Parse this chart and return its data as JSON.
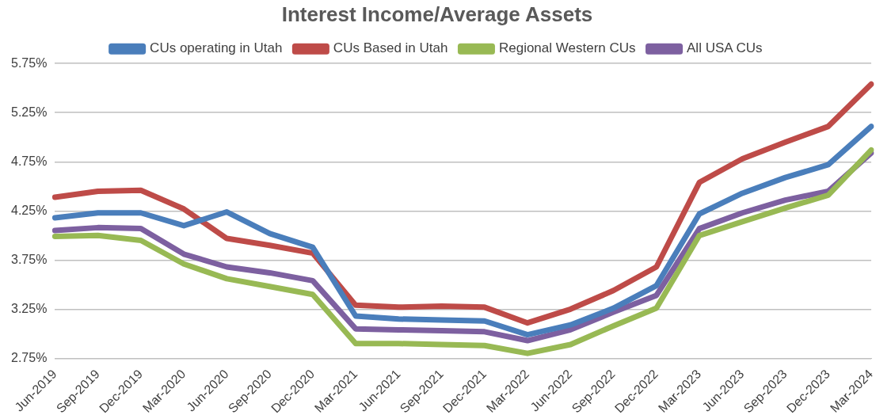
{
  "chart_data": {
    "type": "line",
    "title": "Interest Income/Average Assets",
    "categories": [
      "Jun-2019",
      "Sep-2019",
      "Dec-2019",
      "Mar-2020",
      "Jun-2020",
      "Sep-2020",
      "Dec-2020",
      "Mar-2021",
      "Jun-2021",
      "Sep-2021",
      "Dec-2021",
      "Mar-2022",
      "Jun-2022",
      "Sep-2022",
      "Dec-2022",
      "Mar-2023",
      "Jun-2023",
      "Sep-2023",
      "Dec-2023",
      "Mar-2024"
    ],
    "series": [
      {
        "name": "CUs operating in Utah",
        "color": "#4a7ebb",
        "values": [
          4.18,
          4.23,
          4.23,
          4.1,
          4.24,
          4.02,
          3.88,
          3.18,
          3.15,
          3.14,
          3.13,
          2.99,
          3.09,
          3.26,
          3.49,
          4.22,
          4.43,
          4.59,
          4.72,
          5.11
        ]
      },
      {
        "name": "CUs Based in Utah",
        "color": "#be4b48",
        "values": [
          4.39,
          4.45,
          4.46,
          4.27,
          3.97,
          3.9,
          3.82,
          3.29,
          3.27,
          3.28,
          3.27,
          3.11,
          3.25,
          3.44,
          3.68,
          4.54,
          4.78,
          4.95,
          5.11,
          5.54
        ]
      },
      {
        "name": "Regional Western CUs",
        "color": "#98b954",
        "values": [
          3.99,
          4.0,
          3.95,
          3.71,
          3.56,
          3.48,
          3.4,
          2.9,
          2.9,
          2.89,
          2.88,
          2.8,
          2.89,
          3.08,
          3.26,
          4.0,
          4.14,
          4.28,
          4.41,
          4.87
        ]
      },
      {
        "name": "All USA CUs",
        "color": "#7d60a0",
        "values": [
          4.05,
          4.08,
          4.07,
          3.81,
          3.68,
          3.62,
          3.54,
          3.05,
          3.04,
          3.03,
          3.02,
          2.93,
          3.04,
          3.22,
          3.39,
          4.07,
          4.23,
          4.36,
          4.45,
          4.84
        ]
      }
    ],
    "ylim": [
      2.75,
      5.75
    ],
    "yticks": [
      {
        "value": 2.75,
        "label": "2.75%"
      },
      {
        "value": 3.25,
        "label": "3.25%"
      },
      {
        "value": 3.75,
        "label": "3.75%"
      },
      {
        "value": 4.25,
        "label": "4.25%"
      },
      {
        "value": 4.75,
        "label": "4.75%"
      },
      {
        "value": 5.25,
        "label": "5.25%"
      },
      {
        "value": 5.75,
        "label": "5.75%"
      }
    ],
    "grid": "y",
    "legend": "top",
    "marker": "none",
    "line_style": "solid"
  }
}
